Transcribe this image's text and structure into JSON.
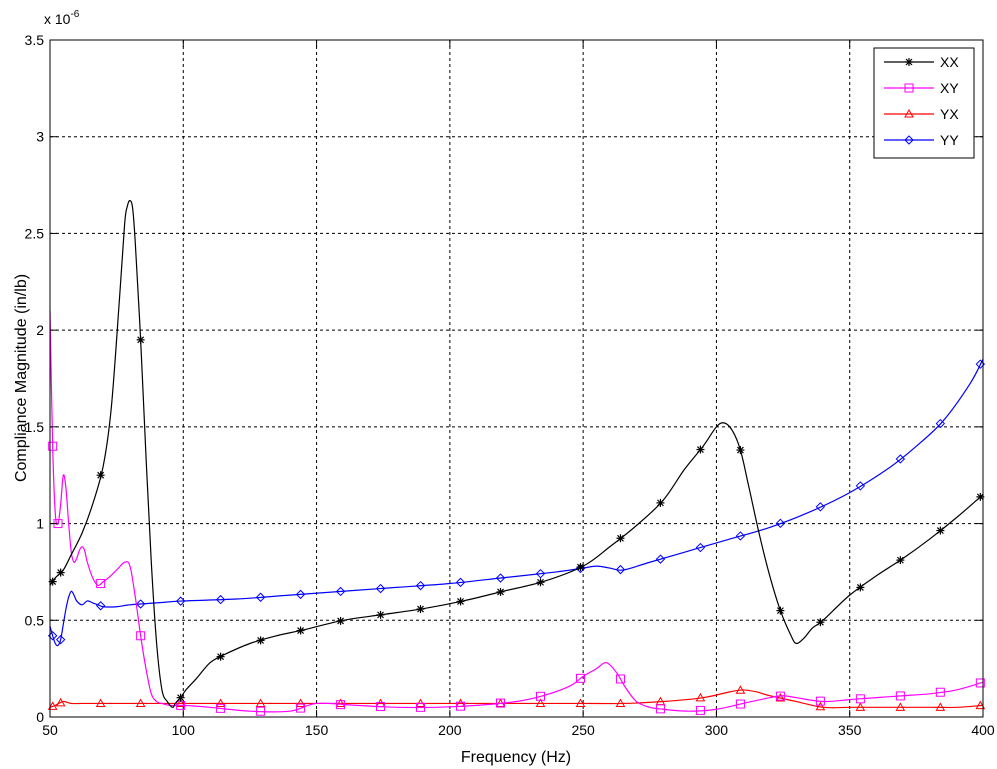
{
  "chart_data": {
    "type": "line",
    "title": "",
    "xlabel": "Frequency (Hz)",
    "ylabel": "Compliance Magnitude (in/lb)",
    "y_exponent_label": "x 10",
    "y_exponent_power": "-6",
    "xlim": [
      50,
      400
    ],
    "ylim": [
      0,
      3.5
    ],
    "xticks": [
      "50",
      "100",
      "150",
      "200",
      "250",
      "300",
      "350",
      "400"
    ],
    "yticks": [
      "0",
      "0.5",
      "1",
      "1.5",
      "2",
      "2.5",
      "3",
      "3.5"
    ],
    "grid": true,
    "legend_position": "top-right",
    "series": [
      {
        "name": "XX",
        "color": "#000000",
        "marker": "star",
        "x": [
          50,
          52,
          55,
          58,
          62,
          66,
          70,
          73,
          76,
          78,
          79,
          80,
          81,
          82,
          84,
          86,
          88,
          90,
          92,
          94,
          96,
          97,
          99,
          101,
          105,
          110,
          115,
          125,
          135,
          145,
          160,
          175,
          190,
          205,
          220,
          235,
          250,
          260,
          270,
          280,
          288,
          295,
          300,
          303,
          306,
          309,
          312,
          316,
          320,
          324,
          328,
          330,
          333,
          336,
          340,
          350,
          360,
          370,
          380,
          390,
          400
        ],
        "y": [
          0.68,
          0.72,
          0.76,
          0.84,
          0.95,
          1.1,
          1.3,
          1.6,
          2.15,
          2.55,
          2.64,
          2.67,
          2.63,
          2.45,
          1.95,
          1.35,
          0.8,
          0.38,
          0.14,
          0.08,
          0.05,
          0.07,
          0.1,
          0.14,
          0.2,
          0.28,
          0.32,
          0.38,
          0.42,
          0.45,
          0.5,
          0.53,
          0.56,
          0.6,
          0.65,
          0.7,
          0.78,
          0.88,
          0.99,
          1.12,
          1.28,
          1.4,
          1.5,
          1.52,
          1.48,
          1.38,
          1.2,
          0.95,
          0.73,
          0.55,
          0.42,
          0.38,
          0.41,
          0.46,
          0.5,
          0.63,
          0.73,
          0.82,
          0.92,
          1.03,
          1.15
        ],
        "marker_x": [
          51,
          54,
          69,
          84,
          99,
          114,
          129,
          144,
          159,
          174,
          189,
          204,
          219,
          234,
          249,
          264,
          279,
          294,
          309,
          324,
          339,
          354,
          369,
          384,
          399
        ]
      },
      {
        "name": "XY",
        "color": "#ff00ff",
        "marker": "square",
        "x": [
          50,
          51,
          52,
          53,
          54,
          55,
          56,
          57,
          58,
          59,
          60,
          61,
          62,
          63,
          64,
          66,
          68,
          70,
          72,
          75,
          78,
          80,
          82,
          84,
          86,
          88,
          90,
          92,
          95,
          100,
          110,
          125,
          140,
          150,
          165,
          180,
          195,
          210,
          225,
          235,
          245,
          250,
          255,
          258,
          260,
          263,
          266,
          270,
          275,
          280,
          290,
          300,
          310,
          320,
          325,
          330,
          340,
          350,
          360,
          370,
          380,
          390,
          400
        ],
        "y": [
          2.1,
          1.4,
          1.05,
          1.0,
          1.1,
          1.25,
          1.18,
          1.0,
          0.85,
          0.8,
          0.82,
          0.86,
          0.88,
          0.86,
          0.8,
          0.72,
          0.68,
          0.7,
          0.72,
          0.76,
          0.8,
          0.78,
          0.62,
          0.42,
          0.25,
          0.12,
          0.08,
          0.07,
          0.06,
          0.06,
          0.05,
          0.03,
          0.03,
          0.07,
          0.06,
          0.05,
          0.05,
          0.06,
          0.08,
          0.11,
          0.16,
          0.21,
          0.25,
          0.28,
          0.27,
          0.22,
          0.15,
          0.08,
          0.05,
          0.04,
          0.03,
          0.04,
          0.07,
          0.1,
          0.11,
          0.1,
          0.08,
          0.09,
          0.1,
          0.11,
          0.12,
          0.14,
          0.18
        ],
        "marker_x": [
          51,
          53,
          69,
          84,
          99,
          114,
          129,
          144,
          159,
          174,
          189,
          204,
          219,
          234,
          249,
          264,
          279,
          294,
          309,
          324,
          339,
          354,
          369,
          384,
          399
        ]
      },
      {
        "name": "YX",
        "color": "#ff0000",
        "marker": "triangle",
        "x": [
          50,
          52,
          55,
          58,
          62,
          70,
          80,
          90,
          100,
          115,
          130,
          150,
          170,
          190,
          210,
          230,
          250,
          265,
          280,
          295,
          305,
          310,
          315,
          320,
          330,
          340,
          350,
          360,
          370,
          380,
          390,
          400
        ],
        "y": [
          0.05,
          0.06,
          0.08,
          0.07,
          0.07,
          0.07,
          0.07,
          0.07,
          0.07,
          0.07,
          0.07,
          0.07,
          0.07,
          0.07,
          0.07,
          0.07,
          0.07,
          0.07,
          0.08,
          0.1,
          0.13,
          0.14,
          0.13,
          0.11,
          0.08,
          0.05,
          0.05,
          0.05,
          0.05,
          0.05,
          0.05,
          0.06
        ],
        "marker_x": [
          51,
          54,
          69,
          84,
          99,
          114,
          129,
          144,
          159,
          174,
          189,
          204,
          219,
          234,
          249,
          264,
          279,
          294,
          309,
          324,
          339,
          354,
          369,
          384,
          399
        ]
      },
      {
        "name": "YY",
        "color": "#0000ff",
        "marker": "diamond",
        "x": [
          50,
          51,
          52,
          53,
          54,
          55,
          56,
          57,
          58,
          59,
          60,
          62,
          64,
          66,
          68,
          70,
          75,
          80,
          90,
          100,
          120,
          140,
          160,
          180,
          200,
          220,
          240,
          250,
          255,
          260,
          265,
          275,
          290,
          305,
          320,
          335,
          350,
          365,
          375,
          385,
          395,
          400
        ],
        "y": [
          0.47,
          0.42,
          0.38,
          0.37,
          0.4,
          0.48,
          0.56,
          0.62,
          0.65,
          0.63,
          0.6,
          0.58,
          0.6,
          0.59,
          0.58,
          0.57,
          0.57,
          0.58,
          0.59,
          0.6,
          0.61,
          0.63,
          0.65,
          0.67,
          0.69,
          0.72,
          0.75,
          0.77,
          0.78,
          0.77,
          0.76,
          0.8,
          0.86,
          0.92,
          0.98,
          1.06,
          1.16,
          1.29,
          1.4,
          1.53,
          1.72,
          1.85
        ],
        "marker_x": [
          51,
          54,
          69,
          84,
          99,
          114,
          129,
          144,
          159,
          174,
          189,
          204,
          219,
          234,
          249,
          264,
          279,
          294,
          309,
          324,
          339,
          354,
          369,
          384,
          399
        ]
      }
    ]
  }
}
